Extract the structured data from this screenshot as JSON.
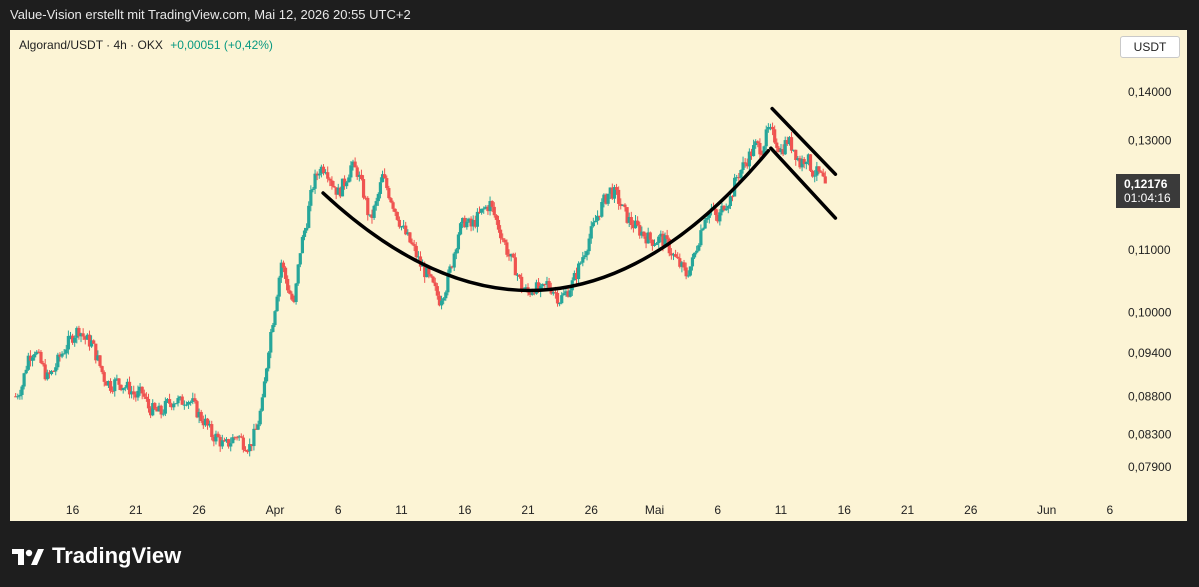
{
  "header": {
    "title": "Value-Vision erstellt mit TradingView.com, Mai 12, 2026 20:55 UTC+2"
  },
  "legend": {
    "symbol": "Algorand/USDT · 4h · OKX",
    "change": "+0,00051 (+0,42%)"
  },
  "currency_button": "USDT",
  "price_label": {
    "price": "0,12176",
    "countdown": "01:04:16"
  },
  "footer": {
    "brand": "TradingView"
  },
  "colors": {
    "up": "#26a69a",
    "down": "#ef5350",
    "background": "#fcf4d5",
    "change": "#089981"
  },
  "chart_data": {
    "type": "candlestick",
    "symbol": "Algorand/USDT",
    "interval": "4h",
    "exchange": "OKX",
    "y_ticks": [
      0.14,
      0.13,
      0.11,
      0.1,
      0.094,
      0.088,
      0.083,
      0.079
    ],
    "y_tick_labels": [
      "0,14000",
      "0,13000",
      "0,11000",
      "0,10000",
      "0,09400",
      "0,08800",
      "0,08300",
      "0,07900"
    ],
    "x_tick_labels": [
      "16",
      "21",
      "26",
      "Apr",
      "6",
      "11",
      "16",
      "21",
      "26",
      "Mai",
      "6",
      "11",
      "16",
      "21",
      "26",
      "Jun",
      "6"
    ],
    "x_ticks": [
      {
        "label": "16",
        "day": -16
      },
      {
        "label": "21",
        "day": -11
      },
      {
        "label": "26",
        "day": -6
      },
      {
        "label": "Apr",
        "day": 0
      },
      {
        "label": "6",
        "day": 5
      },
      {
        "label": "11",
        "day": 10
      },
      {
        "label": "16",
        "day": 15
      },
      {
        "label": "21",
        "day": 20
      },
      {
        "label": "26",
        "day": 25
      },
      {
        "label": "Mai",
        "day": 30
      },
      {
        "label": "6",
        "day": 35
      },
      {
        "label": "11",
        "day": 40
      },
      {
        "label": "16",
        "day": 45
      },
      {
        "label": "21",
        "day": 50
      },
      {
        "label": "26",
        "day": 55
      },
      {
        "label": "Jun",
        "day": 61
      },
      {
        "label": "6",
        "day": 66
      }
    ],
    "last_price": 0.12176,
    "closes": [
      [
        -20.5,
        0.088
      ],
      [
        -20,
        0.0895
      ],
      [
        -19.5,
        0.0935
      ],
      [
        -19,
        0.0945
      ],
      [
        -18.5,
        0.0925
      ],
      [
        -18,
        0.0905
      ],
      [
        -17.5,
        0.0915
      ],
      [
        -17,
        0.0935
      ],
      [
        -16.5,
        0.095
      ],
      [
        -16,
        0.0965
      ],
      [
        -15.5,
        0.0975
      ],
      [
        -15,
        0.096
      ],
      [
        -14.5,
        0.0955
      ],
      [
        -14,
        0.093
      ],
      [
        -13.5,
        0.0905
      ],
      [
        -13,
        0.0895
      ],
      [
        -12.5,
        0.09
      ],
      [
        -12,
        0.0895
      ],
      [
        -11.5,
        0.089
      ],
      [
        -11,
        0.088
      ],
      [
        -10.5,
        0.0885
      ],
      [
        -10,
        0.0865
      ],
      [
        -9.5,
        0.086
      ],
      [
        -9,
        0.0858
      ],
      [
        -8.5,
        0.087
      ],
      [
        -8,
        0.0875
      ],
      [
        -7.5,
        0.0872
      ],
      [
        -7,
        0.0878
      ],
      [
        -6.5,
        0.087
      ],
      [
        -6,
        0.0855
      ],
      [
        -5.5,
        0.0845
      ],
      [
        -5,
        0.083
      ],
      [
        -4.5,
        0.0825
      ],
      [
        -4,
        0.0815
      ],
      [
        -3.5,
        0.0822
      ],
      [
        -3,
        0.083
      ],
      [
        -2.5,
        0.082
      ],
      [
        -2,
        0.0815
      ],
      [
        -1.5,
        0.0835
      ],
      [
        -1,
        0.087
      ],
      [
        -0.5,
        0.095
      ],
      [
        0,
        0.101
      ],
      [
        0.5,
        0.108
      ],
      [
        1,
        0.104
      ],
      [
        1.5,
        0.101
      ],
      [
        2,
        0.11
      ],
      [
        2.5,
        0.115
      ],
      [
        3,
        0.1215
      ],
      [
        3.5,
        0.1245
      ],
      [
        4,
        0.125
      ],
      [
        4.5,
        0.122
      ],
      [
        5,
        0.12
      ],
      [
        5.5,
        0.122
      ],
      [
        6,
        0.125
      ],
      [
        6.5,
        0.124
      ],
      [
        7,
        0.12
      ],
      [
        7.5,
        0.115
      ],
      [
        8,
        0.118
      ],
      [
        8.5,
        0.123
      ],
      [
        9,
        0.12
      ],
      [
        9.5,
        0.117
      ],
      [
        10,
        0.114
      ],
      [
        10.5,
        0.112
      ],
      [
        11,
        0.11
      ],
      [
        11.5,
        0.1075
      ],
      [
        12,
        0.106
      ],
      [
        12.5,
        0.104
      ],
      [
        13,
        0.102
      ],
      [
        13.5,
        0.104
      ],
      [
        14,
        0.108
      ],
      [
        14.5,
        0.113
      ],
      [
        15,
        0.115
      ],
      [
        15.5,
        0.114
      ],
      [
        16,
        0.1155
      ],
      [
        16.5,
        0.117
      ],
      [
        17,
        0.118
      ],
      [
        17.5,
        0.115
      ],
      [
        18,
        0.112
      ],
      [
        18.5,
        0.109
      ],
      [
        19,
        0.107
      ],
      [
        19.5,
        0.104
      ],
      [
        20,
        0.103
      ],
      [
        20.5,
        0.104
      ],
      [
        21,
        0.103
      ],
      [
        21.5,
        0.1045
      ],
      [
        22,
        0.1035
      ],
      [
        22.5,
        0.102
      ],
      [
        23,
        0.103
      ],
      [
        23.5,
        0.1045
      ],
      [
        24,
        0.107
      ],
      [
        24.5,
        0.11
      ],
      [
        25,
        0.113
      ],
      [
        25.5,
        0.116
      ],
      [
        26,
        0.1185
      ],
      [
        26.5,
        0.1205
      ],
      [
        27,
        0.1195
      ],
      [
        27.5,
        0.117
      ],
      [
        28,
        0.115
      ],
      [
        28.5,
        0.114
      ],
      [
        29,
        0.113
      ],
      [
        29.5,
        0.112
      ],
      [
        30,
        0.1115
      ],
      [
        30.5,
        0.112
      ],
      [
        31,
        0.111
      ],
      [
        31.5,
        0.109
      ],
      [
        32,
        0.1075
      ],
      [
        32.5,
        0.106
      ],
      [
        33,
        0.108
      ],
      [
        33.5,
        0.112
      ],
      [
        34,
        0.116
      ],
      [
        34.5,
        0.117
      ],
      [
        35,
        0.115
      ],
      [
        35.5,
        0.118
      ],
      [
        36,
        0.119
      ],
      [
        36.5,
        0.123
      ],
      [
        37,
        0.125
      ],
      [
        37.5,
        0.127
      ],
      [
        38,
        0.129
      ],
      [
        38.5,
        0.1285
      ],
      [
        39,
        0.132
      ],
      [
        39.5,
        0.1305
      ],
      [
        40,
        0.128
      ],
      [
        40.5,
        0.13
      ],
      [
        41,
        0.1285
      ],
      [
        41.5,
        0.1255
      ],
      [
        42,
        0.127
      ],
      [
        42.5,
        0.124
      ],
      [
        43,
        0.1235
      ],
      [
        43.5,
        0.1218
      ]
    ]
  },
  "annotations": {
    "cup_curve": [
      [
        3.8,
        0.12
      ],
      [
        22,
        0.092
      ],
      [
        39,
        0.128
      ]
    ],
    "channel_upper": [
      [
        39.3,
        0.1365
      ],
      [
        44.3,
        0.1235
      ]
    ],
    "channel_lower": [
      [
        39.2,
        0.1285
      ],
      [
        44.3,
        0.1155
      ]
    ]
  }
}
